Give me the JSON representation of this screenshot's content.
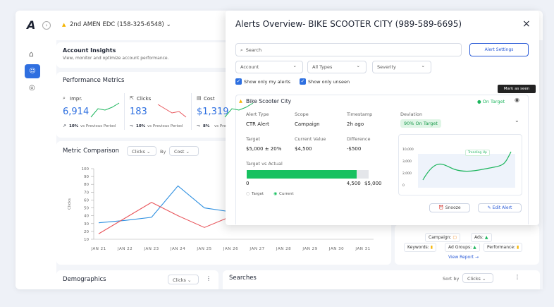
{
  "header": {
    "account": "2nd AMEN EDC (158-325-6548)"
  },
  "insights": {
    "title": "Account Insights",
    "subtitle": "View, monitor and optimize account performance."
  },
  "performance": {
    "title": "Performance Metrics",
    "metrics": [
      {
        "label": "Impr.",
        "value": "6,914",
        "change": "10%",
        "note": "vs Previous Period"
      },
      {
        "label": "Clicks",
        "value": "183",
        "change": "10%",
        "note": "vs Previous Period"
      },
      {
        "label": "Cost",
        "value": "$1,319",
        "change": "8%",
        "note": "vs Pre"
      }
    ]
  },
  "comparison": {
    "title": "Metric Comparison",
    "metric": "Clicks",
    "by": "By",
    "by_metric": "Cost",
    "y_label": "Clicks",
    "ylim": [
      10,
      100
    ],
    "yticks": [
      100,
      90,
      80,
      70,
      60,
      50,
      40,
      30,
      20,
      10
    ],
    "categories": [
      "JAN 21",
      "JAN 22",
      "JAN 23",
      "JAN 24",
      "JAN 25",
      "JAN 26",
      "JAN 27",
      "JAN 28",
      "JAN 29",
      "JAN 30",
      "JAN 31"
    ],
    "series": [
      {
        "color": "#2d8fe0",
        "values": [
          31,
          34,
          38,
          78,
          50,
          45,
          null,
          null,
          null,
          null,
          null
        ]
      },
      {
        "color": "#e8545a",
        "values": [
          17,
          37,
          57,
          40,
          25,
          39,
          null,
          null,
          null,
          null,
          null
        ]
      }
    ]
  },
  "demographics": {
    "title": "Demographics",
    "metric": "Clicks"
  },
  "searches": {
    "title": "Searches",
    "sort_label": "Sort by",
    "sort": "Clicks"
  },
  "breakdown": {
    "campaign": "Campaign:",
    "ads": "Ads:",
    "keywords": "Keywords:",
    "ad_groups": "Ad Groups:",
    "performance": "Performance:",
    "link": "View Report →"
  },
  "modal": {
    "title": "Alerts Overview- BIKE SCOOTER CITY (989-589-6695)",
    "close": "×",
    "search": "Search",
    "settings": "Alert Settings",
    "filters": [
      "Account",
      "All Types",
      "Severity"
    ],
    "checks": [
      "Show only my alerts",
      "Show only unseen"
    ],
    "tooltip": "Mark as seen",
    "card": {
      "name": "Bike Scooter City",
      "status": "On Target",
      "fields": [
        {
          "label": "Alert Type",
          "value": "CTR Alert"
        },
        {
          "label": "Scope",
          "value": "Campaign"
        },
        {
          "label": "Timestamp",
          "value": "2h ago"
        },
        {
          "label": "Deviation",
          "value": "90% On Target"
        },
        {
          "label": "Target",
          "value": "$5,000 ± 20%"
        },
        {
          "label": "Current Value",
          "value": "$4,500"
        },
        {
          "label": "Difference",
          "value": "-$500"
        }
      ],
      "progress": {
        "title": "Target vs Actual",
        "min": 0,
        "current": 4500,
        "target": 5000,
        "value_labels": [
          "4,500",
          "$5,000"
        ],
        "legend": [
          "Target",
          "Current"
        ]
      },
      "mini_chart": {
        "ticks": [
          "10,000",
          "3,000",
          "2,000",
          "0"
        ],
        "note": "Trending Up"
      },
      "actions": [
        "Snooze",
        "Edit Alert"
      ]
    }
  }
}
